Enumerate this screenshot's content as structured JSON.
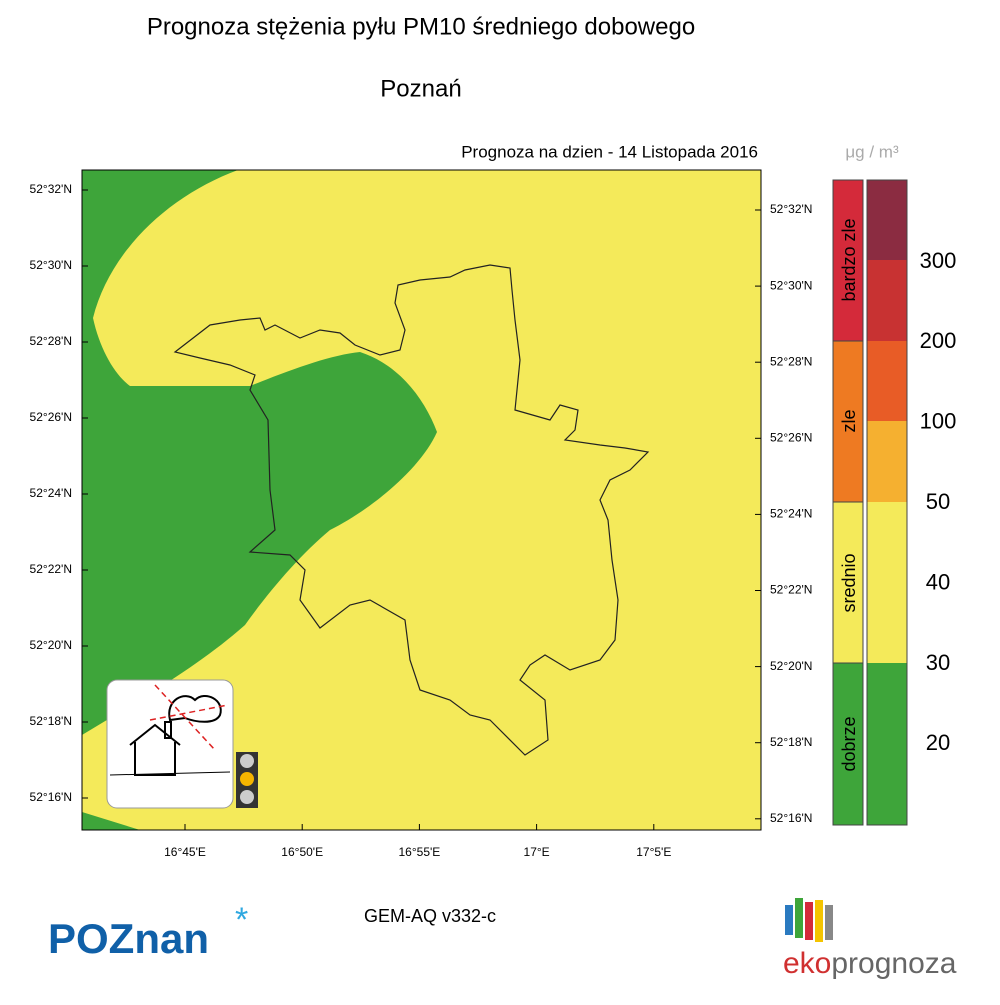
{
  "title": "Prognoza stężenia pyłu PM10 średniego dobowego",
  "city": "Poznań",
  "forecast_date": "Prognoza na dzien -  14 Listopada 2016",
  "unit": "μg / m³",
  "map": {
    "lat_labels_left": [
      "52°32'N",
      "52°30'N",
      "52°28'N",
      "52°26'N",
      "52°24'N",
      "52°22'N",
      "52°20'N",
      "52°18'N",
      "52°16'N"
    ],
    "lat_labels_right": [
      "52°32'N",
      "52°30'N",
      "52°28'N",
      "52°26'N",
      "52°24'N",
      "52°22'N",
      "52°20'N",
      "52°18'N",
      "52°16'N"
    ],
    "lon_labels": [
      "16°45'E",
      "16°50'E",
      "16°55'E",
      "17°E",
      "17°5'E"
    ]
  },
  "legend": {
    "categories": [
      "bardzo zle",
      "zle",
      "srednio",
      "dobrze"
    ],
    "levels": [
      300,
      200,
      100,
      50,
      40,
      30,
      20
    ]
  },
  "model": "GEM-AQ v332-c",
  "brand_left": "POZnan",
  "brand_right": {
    "prefix": "eko",
    "suffix": "prognoza"
  }
}
